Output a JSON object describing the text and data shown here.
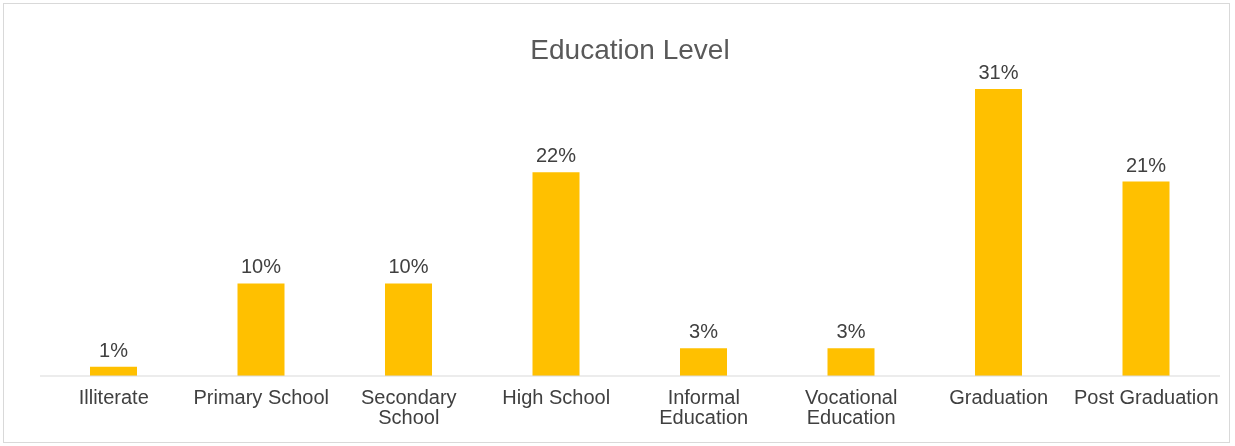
{
  "chart_data": {
    "type": "bar",
    "title": "Education Level",
    "categories": [
      "Illiterate",
      "Primary School",
      "Secondary School",
      "High School",
      "Informal Education",
      "Vocational Education",
      "Graduation",
      "Post Graduation"
    ],
    "values": [
      1,
      10,
      10,
      22,
      3,
      3,
      31,
      21
    ],
    "value_labels": [
      "1%",
      "10%",
      "10%",
      "22%",
      "3%",
      "3%",
      "31%",
      "21%"
    ],
    "color": "#ffc000"
  }
}
